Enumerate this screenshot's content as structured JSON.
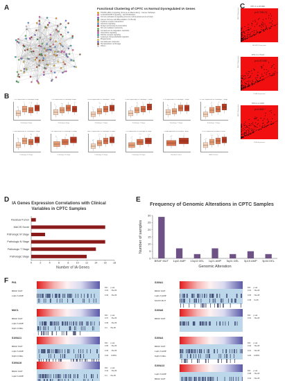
{
  "colors": {
    "accent_red": "#e60f0f",
    "bar_dark_red": "#8b1a1a",
    "bar_purple": "#6e5286",
    "f_navy": "#131b4a",
    "f_light_blue": "#bcd6ea"
  },
  "panel_a": {
    "letter": "A",
    "title": "Functional Clustering of CPTC vs Normal Dysregulated IA Genes",
    "legend": [
      "TNF/NF-κB/IL-6 signaling (Immune & Inflammatory) - Cancer Pathways",
      "IL-6/JAK2/STAT3 signaling - Cell Proliferation",
      "Immune activation & signaling (immune cell development & survival)",
      "Cancer Immune cell differentiation (T & B-cell)",
      "Cytokine receptor interactions",
      "Interferon signaling",
      "Antigen processing & presentation",
      "NK cell mediated cytotoxicity",
      "Complement & coagulation cascades",
      "Chemokine signaling",
      "Toll-like receptor signaling",
      "Leukocyte transendothelial migration",
      "Phagocytosis",
      "Cell adhesion molecules",
      "Hematopoietic cell lineage",
      "Others"
    ],
    "legend_colors": [
      "#c9a227",
      "#e06b8b",
      "#8a5bb8",
      "#3f8f5a",
      "#d98d3c",
      "#5b8fd1",
      "#b33a3a",
      "#6bb36b",
      "#8d6e63",
      "#c05bb0",
      "#4aa3a3",
      "#999999",
      "#d4c05a",
      "#7a7ac8",
      "#a0522d",
      "#cccccc"
    ]
  },
  "panel_b": {
    "letter": "B",
    "plots": [
      {
        "title": "CD7 expression vs Pathologic Stage",
        "xlabel": "Pathologic Stage"
      },
      {
        "title": "CD1 expression vs Pathologic Stage",
        "xlabel": "Pathologic Stage"
      },
      {
        "title": "IL2RG expression vs Pathologic T Stage",
        "xlabel": "Pathologic T Stage"
      },
      {
        "title": "ITGB2 expression vs Pathologic T Stage",
        "xlabel": "Pathologic T Stage"
      },
      {
        "title": "LCK expression vs Pathologic T Stage",
        "xlabel": "Pathologic T Stage"
      },
      {
        "title": "PTPRC expression vs Pathologic T Stage",
        "xlabel": "Pathologic T Stage"
      },
      {
        "title": "CD3E expression vs Pathologic N Stage",
        "xlabel": "Pathologic N Stage"
      },
      {
        "title": "TNF expression vs Pathologic N Stage",
        "xlabel": "Pathologic N Stage"
      },
      {
        "title": "ZAP70 expression vs Pathologic N Stage",
        "xlabel": "Pathologic N Stage"
      },
      {
        "title": "ITK expression vs Pathologic M Stage",
        "xlabel": "Pathologic M Stage"
      },
      {
        "title": "CD8A expression vs Residual Tumor",
        "xlabel": "Residual Tumor"
      },
      {
        "title": "CCR7 expression vs MACIS Score",
        "xlabel": "MACIS Score"
      }
    ],
    "box_levels": [
      [
        0.35,
        0.55,
        0.5,
        0.6
      ],
      [
        0.4,
        0.5,
        0.6,
        0.55
      ],
      [
        0.3,
        0.45,
        0.55,
        0.6
      ],
      [
        0.35,
        0.5,
        0.55,
        0.65
      ],
      [
        0.4,
        0.45,
        0.6,
        0.6
      ],
      [
        0.3,
        0.5,
        0.55,
        0.65
      ],
      [
        0.35,
        0.55,
        0.5,
        0.6
      ],
      [
        0.4,
        0.5,
        0.6
      ],
      [
        0.3,
        0.45,
        0.55,
        0.6
      ],
      [
        0.35,
        0.5,
        0.55
      ],
      [
        0.45,
        0.55
      ],
      [
        0.35,
        0.5,
        0.55,
        0.6
      ]
    ]
  },
  "panel_c": {
    "letter": "C",
    "plots": [
      {
        "title": "MHC-II vs ADGRE1",
        "r": "ρ=0.796 (*)",
        "xlabel": "ADGRE1 Expression",
        "ylabel": "MHC-II Expression"
      },
      {
        "title": "MHC-II vs ITGAX",
        "r": "ρ=0.87158",
        "xlabel": "ITGAX Expression",
        "ylabel": "MHC-II Expression"
      },
      {
        "title": "MHC-II vs CD68",
        "r": "ρ=0.826 *",
        "xlabel": "CD68 Expression",
        "ylabel": "MHC-II Expression"
      }
    ]
  },
  "panel_d": {
    "letter": "D",
    "title": "IA Genes Expression Correlations with Clinical Variables in CPTC Samples",
    "chart_data": {
      "type": "bar",
      "orientation": "horizontal",
      "categories": [
        "Residual Tumor",
        "MACIS Score",
        "Pathologic M Stage",
        "Pathologic N Stage",
        "Pathologic T Stage",
        "Pathologic Stage"
      ],
      "values": [
        1,
        16,
        3,
        16,
        14,
        12
      ],
      "xlabel": "Number of IA Genes",
      "xlim": [
        0,
        18
      ],
      "xticks": [
        0,
        2,
        4,
        6,
        8,
        10,
        12,
        14,
        16,
        18
      ],
      "grid": false
    }
  },
  "panel_e": {
    "letter": "E",
    "title": "Frequency of Genomic Alterations in CPTC Samples",
    "chart_data": {
      "type": "bar",
      "categories": [
        "BRAF MUT",
        "1q42 AMP",
        "13q13 DEL",
        "1q21 AMP",
        "5q31 DEL",
        "5p15 AMP",
        "9p34 DEL"
      ],
      "values": [
        29,
        7,
        3,
        7,
        3,
        5,
        3
      ],
      "xlabel": "Genomic Alteration",
      "ylabel": "Number of samples",
      "ylim": [
        0,
        30
      ],
      "yticks": [
        0,
        5,
        10,
        15,
        20,
        25,
        30
      ],
      "grid": false
    }
  },
  "panel_f": {
    "letter": "F",
    "blocks": [
      {
        "gene": "PN1",
        "rows": [
          "BRAF MUT",
          "1q21.3 AMP"
        ],
        "header": {
          "c1": "DIC",
          "c2": "p-val"
        },
        "stats": [
          {
            "d": "0.34",
            "p": "<5e-06"
          },
          {
            "d": "0.36",
            "p": "<5e-05"
          }
        ]
      },
      {
        "gene": "S100A1",
        "rows": [
          "BRAF MUT",
          "1q21.3 AMP",
          "MUC5 MUT"
        ],
        "header": {
          "c1": "DIC",
          "c2": "p-val"
        },
        "stats": [
          {
            "d": "0.31",
            "p": "<5e-06"
          },
          {
            "d": "0.35",
            "p": "<5e-05"
          },
          {
            "d": "0.45",
            "p": "7e-05"
          }
        ]
      },
      {
        "gene": "MUC1",
        "rows": [
          "BRAF MUT",
          "1q21.3 AMP",
          "9q21.3 DEL"
        ],
        "header": {
          "c1": "DIC",
          "c2": "p-val"
        },
        "stats": [
          {
            "d": "0.37",
            "p": "<5e-06"
          },
          {
            "d": "0.35",
            "p": "<5e-05"
          },
          {
            "d": "0.4",
            "p": "<5e-05"
          }
        ]
      },
      {
        "gene": "S100A6",
        "rows": [
          "BRAF MUT"
        ],
        "header": {
          "c1": "DIC",
          "c2": "p-val"
        },
        "stats": [
          {
            "d": "0.31",
            "p": "<5e-06"
          }
        ]
      },
      {
        "gene": "S100A11",
        "rows": [
          "BRAF MUT",
          "1q21.3 AMP",
          "9q34.3 DEL"
        ],
        "header": {
          "c1": "DIC",
          "c2": "p-val"
        },
        "stats": [
          {
            "d": "0.36",
            "p": "<5e-06"
          },
          {
            "d": "0.36",
            "p": "<5e-05"
          },
          {
            "d": "0.29",
            "p": "0.0051"
          }
        ]
      },
      {
        "gene": "S100A4",
        "rows": [
          "BRAF MUT",
          "1q21.3 AMP",
          "9q34.3 DEL"
        ],
        "header": {
          "c1": "DIC",
          "c2": "p-val"
        },
        "stats": [
          {
            "d": "0.32",
            "p": "<5e-06"
          },
          {
            "d": "0.31",
            "p": "<5e-05"
          },
          {
            "d": "0.29",
            "p": "0.0053"
          }
        ]
      },
      {
        "gene": "S100A16",
        "rows": [
          "BRAF MUT",
          "1q42.3 AMP"
        ],
        "header": {
          "c1": "DIC",
          "c2": "p-val"
        },
        "stats": [
          {
            "d": "0.42",
            "p": "<5e-06"
          },
          {
            "d": "0.4",
            "p": "<5e-05"
          }
        ]
      },
      {
        "gene": "S100A13",
        "rows": [
          "1q21.3 AMP",
          "BRAF MUT",
          "9q34.3 DEL"
        ],
        "header": {
          "c1": "DIC",
          "c2": "p-val"
        },
        "stats": [
          {
            "d": "0.38",
            "p": "<5e-06"
          },
          {
            "d": "0.42",
            "p": "<5e-06"
          },
          {
            "d": "0.26",
            "p": "0.0013"
          }
        ]
      }
    ]
  }
}
